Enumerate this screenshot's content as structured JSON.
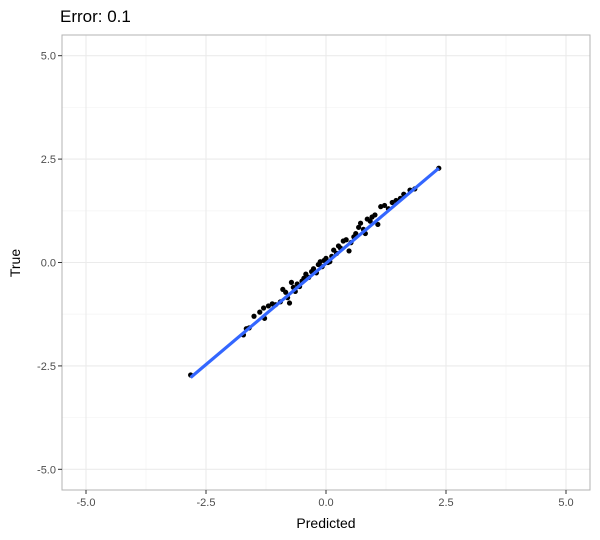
{
  "chart_data": {
    "type": "scatter",
    "title": "Error: 0.1",
    "xlabel": "Predicted",
    "ylabel": "True",
    "xlim": [
      -5.5,
      5.5
    ],
    "ylim": [
      -5.5,
      5.5
    ],
    "x_ticks": [
      -5.0,
      -2.5,
      0.0,
      2.5,
      5.0
    ],
    "y_ticks": [
      -5.0,
      -2.5,
      0.0,
      2.5,
      5.0
    ],
    "x_tick_labels": [
      "-5.0",
      "-2.5",
      "0.0",
      "2.5",
      "5.0"
    ],
    "y_tick_labels": [
      "-5.0",
      "-2.5",
      "0.0",
      "2.5",
      "5.0"
    ],
    "grid": true,
    "colors": {
      "points": "#000000",
      "fit_line": "#3366ff",
      "grid_major": "#ebebeb",
      "grid_minor": "#f5f5f5",
      "panel_border": "#b3b3b3"
    },
    "series": [
      {
        "type": "scatter",
        "x": [
          -2.82,
          -1.72,
          -1.66,
          -1.6,
          -1.5,
          -1.38,
          -1.3,
          -1.28,
          -1.2,
          -1.12,
          -1.05,
          -0.95,
          -0.9,
          -0.84,
          -0.8,
          -0.76,
          -0.72,
          -0.68,
          -0.64,
          -0.6,
          -0.55,
          -0.5,
          -0.46,
          -0.42,
          -0.36,
          -0.3,
          -0.26,
          -0.2,
          -0.16,
          -0.12,
          -0.08,
          -0.04,
          0.0,
          0.04,
          0.08,
          0.12,
          0.16,
          0.22,
          0.26,
          0.3,
          0.36,
          0.42,
          0.48,
          0.52,
          0.58,
          0.62,
          0.68,
          0.72,
          0.78,
          0.82,
          0.86,
          0.92,
          0.96,
          1.02,
          1.08,
          1.14,
          1.22,
          1.3,
          1.38,
          1.46,
          1.55,
          1.62,
          1.75,
          1.85,
          2.35
        ],
        "y": [
          -2.72,
          -1.75,
          -1.6,
          -1.58,
          -1.3,
          -1.2,
          -1.1,
          -1.35,
          -1.05,
          -1.0,
          -1.02,
          -0.95,
          -0.65,
          -0.72,
          -0.85,
          -0.98,
          -0.48,
          -0.6,
          -0.7,
          -0.52,
          -0.58,
          -0.45,
          -0.38,
          -0.28,
          -0.36,
          -0.22,
          -0.15,
          -0.25,
          -0.05,
          0.02,
          -0.1,
          0.05,
          0.1,
          0.0,
          0.02,
          0.15,
          0.3,
          0.22,
          0.4,
          0.35,
          0.52,
          0.55,
          0.28,
          0.48,
          0.62,
          0.7,
          0.85,
          0.95,
          0.8,
          0.7,
          1.05,
          1.0,
          1.1,
          1.15,
          0.92,
          1.35,
          1.38,
          1.3,
          1.45,
          1.5,
          1.55,
          1.65,
          1.75,
          1.78,
          2.28
        ]
      },
      {
        "type": "line",
        "x": [
          -2.82,
          2.35
        ],
        "y": [
          -2.78,
          2.28
        ]
      }
    ]
  }
}
